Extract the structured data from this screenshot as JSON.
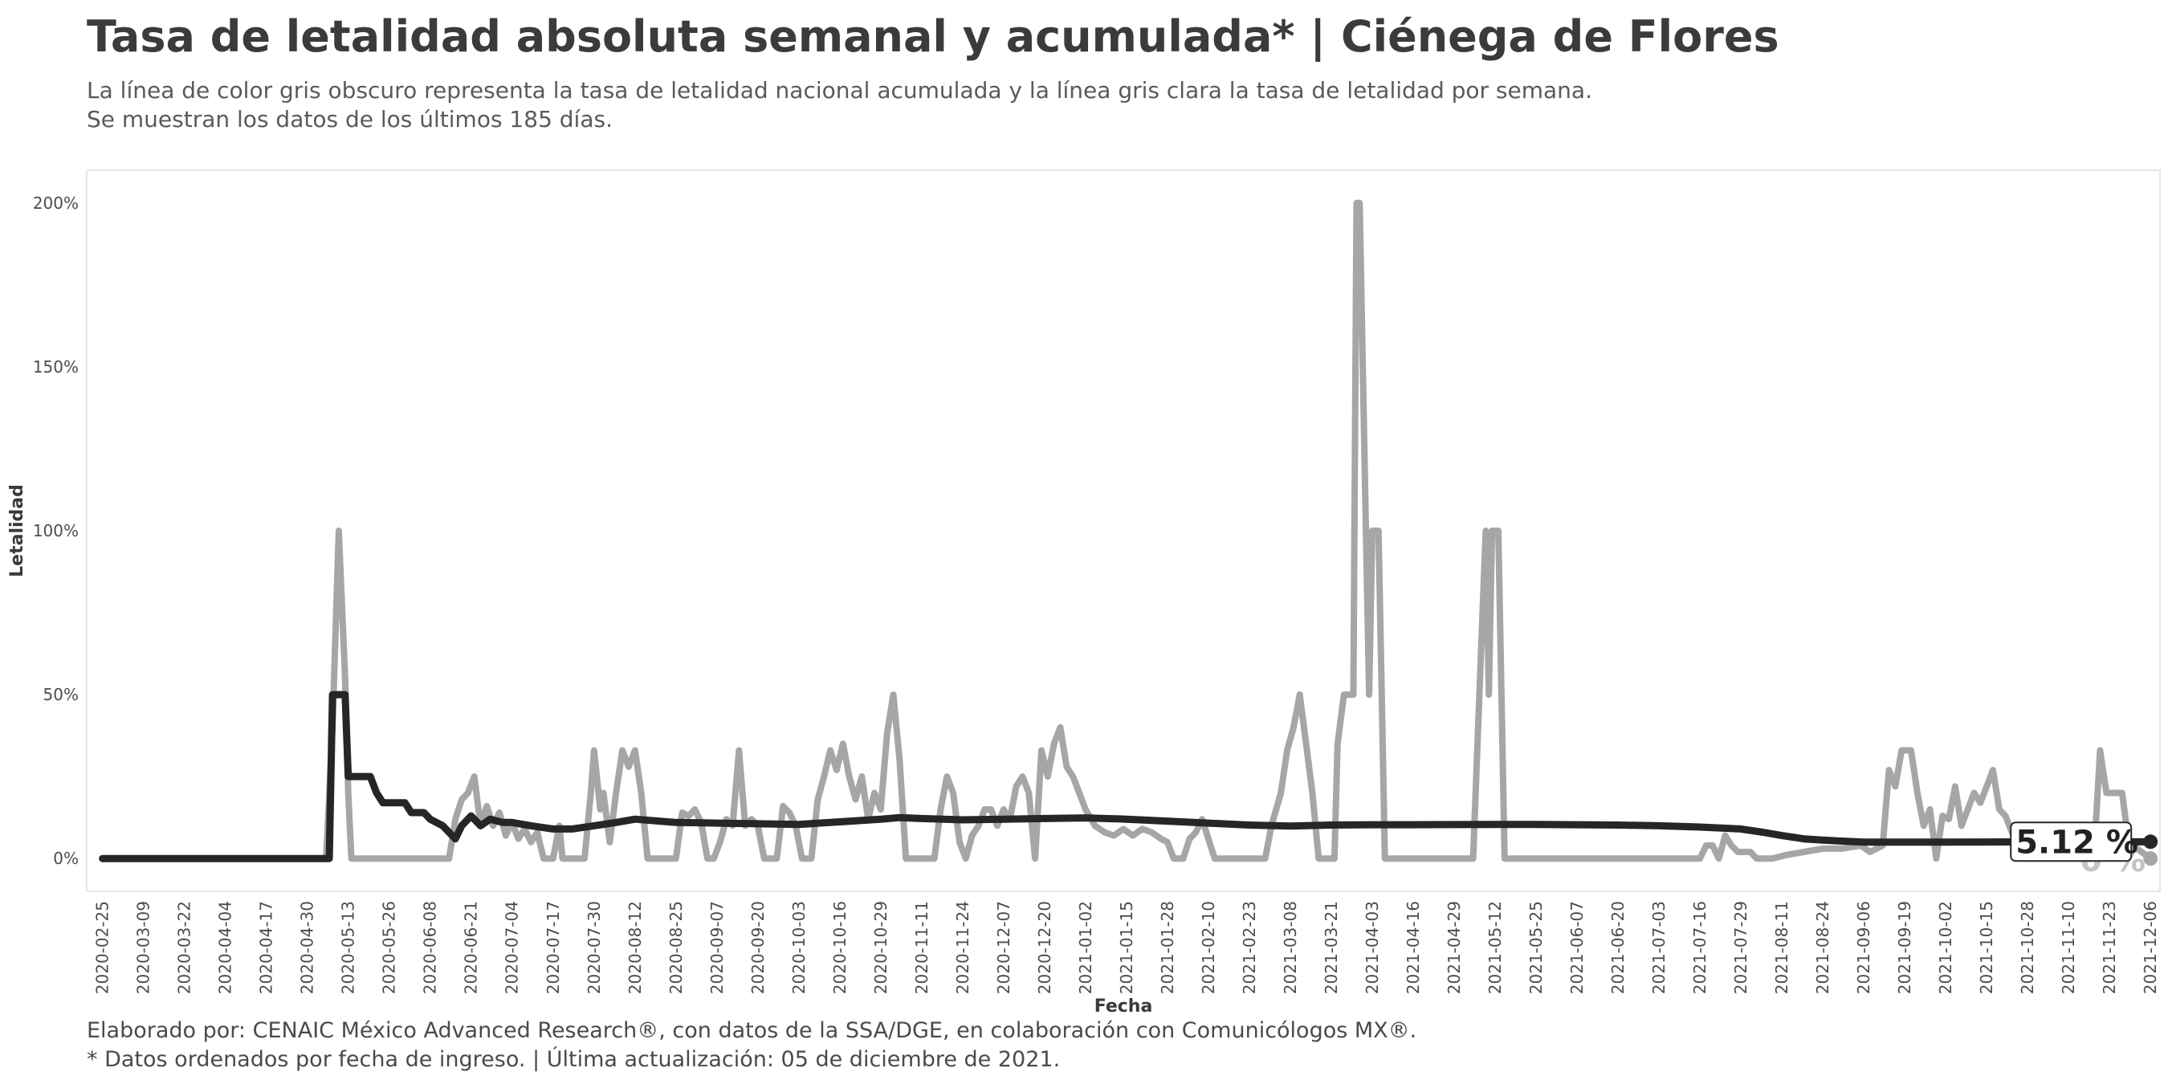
{
  "title": "Tasa de letalidad absoluta semanal y acumulada* | Ciénega de Flores",
  "subtitle_line1": "La línea de color gris obscuro representa la tasa de letalidad nacional acumulada y la línea gris clara la tasa de letalidad por semana.",
  "subtitle_line2": "Se muestran los datos de los últimos 185 días.",
  "caption_line1": "Elaborado por: CENAIC México Advanced Research®, con datos de la SSA/DGE, en colaboración con Comunicólogos MX®.",
  "caption_line2": "* Datos ordenados por fecha de ingreso. | Última actualización: 05 de diciembre de 2021.",
  "colors": {
    "weekly": "#a6a6a6",
    "cumulative": "#262626"
  },
  "chart_data": {
    "type": "line",
    "xlabel": "Fecha",
    "ylabel": "Letalidad",
    "x_range": [
      "2020-02-20",
      "2021-12-09"
    ],
    "ylim": [
      -10,
      210
    ],
    "y_ticks": [
      0,
      50,
      100,
      150,
      200
    ],
    "y_tick_labels": [
      "0%",
      "50%",
      "100%",
      "150%",
      "200%"
    ],
    "x_tick_labels": [
      "2020-02-25",
      "2020-03-09",
      "2020-03-22",
      "2020-04-04",
      "2020-04-17",
      "2020-04-30",
      "2020-05-13",
      "2020-05-26",
      "2020-06-08",
      "2020-06-21",
      "2020-07-04",
      "2020-07-17",
      "2020-07-30",
      "2020-08-12",
      "2020-08-25",
      "2020-09-07",
      "2020-09-20",
      "2020-10-03",
      "2020-10-16",
      "2020-10-29",
      "2020-11-11",
      "2020-11-24",
      "2020-12-07",
      "2020-12-20",
      "2021-01-02",
      "2021-01-15",
      "2021-01-28",
      "2021-02-10",
      "2021-02-23",
      "2021-03-08",
      "2021-03-21",
      "2021-04-03",
      "2021-04-16",
      "2021-04-29",
      "2021-05-12",
      "2021-05-25",
      "2021-06-07",
      "2021-06-20",
      "2021-07-03",
      "2021-07-16",
      "2021-07-29",
      "2021-08-11",
      "2021-08-24",
      "2021-09-06",
      "2021-09-19",
      "2021-10-02",
      "2021-10-15",
      "2021-10-28",
      "2021-11-10",
      "2021-11-23",
      "2021-12-06"
    ],
    "grid": false,
    "end_label_cumulative": "5.12 %",
    "end_label_weekly": "0 %",
    "series": [
      {
        "role": "weekly",
        "points": [
          [
            "2020-02-25",
            0
          ],
          [
            "2020-05-06",
            0
          ],
          [
            "2020-05-08",
            40
          ],
          [
            "2020-05-10",
            100
          ],
          [
            "2020-05-12",
            55
          ],
          [
            "2020-05-13",
            20
          ],
          [
            "2020-05-14",
            0
          ],
          [
            "2020-06-14",
            0
          ],
          [
            "2020-06-16",
            12
          ],
          [
            "2020-06-18",
            18
          ],
          [
            "2020-06-20",
            20
          ],
          [
            "2020-06-22",
            25
          ],
          [
            "2020-06-24",
            10
          ],
          [
            "2020-06-26",
            16
          ],
          [
            "2020-06-28",
            10
          ],
          [
            "2020-06-30",
            14
          ],
          [
            "2020-07-02",
            7
          ],
          [
            "2020-07-04",
            11
          ],
          [
            "2020-07-06",
            6
          ],
          [
            "2020-07-08",
            9
          ],
          [
            "2020-07-10",
            5
          ],
          [
            "2020-07-12",
            8
          ],
          [
            "2020-07-14",
            0
          ],
          [
            "2020-07-17",
            0
          ],
          [
            "2020-07-18",
            5
          ],
          [
            "2020-07-19",
            10
          ],
          [
            "2020-07-20",
            0
          ],
          [
            "2020-07-27",
            0
          ],
          [
            "2020-07-29",
            20
          ],
          [
            "2020-07-30",
            33
          ],
          [
            "2020-08-01",
            15
          ],
          [
            "2020-08-02",
            20
          ],
          [
            "2020-08-04",
            5
          ],
          [
            "2020-08-06",
            20
          ],
          [
            "2020-08-08",
            33
          ],
          [
            "2020-08-10",
            28
          ],
          [
            "2020-08-12",
            33
          ],
          [
            "2020-08-14",
            20
          ],
          [
            "2020-08-16",
            0
          ],
          [
            "2020-08-25",
            0
          ],
          [
            "2020-08-27",
            14
          ],
          [
            "2020-08-29",
            13
          ],
          [
            "2020-08-31",
            15
          ],
          [
            "2020-09-02",
            11
          ],
          [
            "2020-09-04",
            0
          ],
          [
            "2020-09-06",
            0
          ],
          [
            "2020-09-08",
            5
          ],
          [
            "2020-09-10",
            12
          ],
          [
            "2020-09-12",
            10
          ],
          [
            "2020-09-14",
            33
          ],
          [
            "2020-09-16",
            10
          ],
          [
            "2020-09-18",
            12
          ],
          [
            "2020-09-20",
            10
          ],
          [
            "2020-09-22",
            0
          ],
          [
            "2020-09-26",
            0
          ],
          [
            "2020-09-28",
            16
          ],
          [
            "2020-09-30",
            14
          ],
          [
            "2020-10-02",
            10
          ],
          [
            "2020-10-04",
            0
          ],
          [
            "2020-10-07",
            0
          ],
          [
            "2020-10-09",
            18
          ],
          [
            "2020-10-11",
            25
          ],
          [
            "2020-10-13",
            33
          ],
          [
            "2020-10-15",
            27
          ],
          [
            "2020-10-17",
            35
          ],
          [
            "2020-10-19",
            25
          ],
          [
            "2020-10-21",
            18
          ],
          [
            "2020-10-23",
            25
          ],
          [
            "2020-10-25",
            12
          ],
          [
            "2020-10-27",
            20
          ],
          [
            "2020-10-29",
            15
          ],
          [
            "2020-10-31",
            38
          ],
          [
            "2020-11-02",
            50
          ],
          [
            "2020-11-04",
            30
          ],
          [
            "2020-11-06",
            0
          ],
          [
            "2020-11-15",
            0
          ],
          [
            "2020-11-17",
            15
          ],
          [
            "2020-11-19",
            25
          ],
          [
            "2020-11-21",
            20
          ],
          [
            "2020-11-23",
            5
          ],
          [
            "2020-11-25",
            0
          ],
          [
            "2020-11-27",
            7
          ],
          [
            "2020-11-29",
            10
          ],
          [
            "2020-12-01",
            15
          ],
          [
            "2020-12-03",
            15
          ],
          [
            "2020-12-05",
            10
          ],
          [
            "2020-12-07",
            15
          ],
          [
            "2020-12-09",
            12
          ],
          [
            "2020-12-11",
            22
          ],
          [
            "2020-12-13",
            25
          ],
          [
            "2020-12-15",
            20
          ],
          [
            "2020-12-17",
            0
          ],
          [
            "2020-12-19",
            33
          ],
          [
            "2020-12-21",
            25
          ],
          [
            "2020-12-23",
            35
          ],
          [
            "2020-12-25",
            40
          ],
          [
            "2020-12-27",
            28
          ],
          [
            "2020-12-29",
            25
          ],
          [
            "2020-12-31",
            20
          ],
          [
            "2021-01-02",
            15
          ],
          [
            "2021-01-05",
            10
          ],
          [
            "2021-01-08",
            8
          ],
          [
            "2021-01-11",
            7
          ],
          [
            "2021-01-14",
            9
          ],
          [
            "2021-01-17",
            7
          ],
          [
            "2021-01-20",
            9
          ],
          [
            "2021-01-23",
            8
          ],
          [
            "2021-01-26",
            6
          ],
          [
            "2021-01-28",
            5
          ],
          [
            "2021-01-30",
            0
          ],
          [
            "2021-02-02",
            0
          ],
          [
            "2021-02-04",
            6
          ],
          [
            "2021-02-06",
            8
          ],
          [
            "2021-02-08",
            12
          ],
          [
            "2021-02-10",
            6
          ],
          [
            "2021-02-12",
            0
          ],
          [
            "2021-02-28",
            0
          ],
          [
            "2021-03-02",
            10
          ],
          [
            "2021-03-05",
            20
          ],
          [
            "2021-03-07",
            33
          ],
          [
            "2021-03-09",
            40
          ],
          [
            "2021-03-11",
            50
          ],
          [
            "2021-03-13",
            35
          ],
          [
            "2021-03-15",
            20
          ],
          [
            "2021-03-17",
            0
          ],
          [
            "2021-03-22",
            0
          ],
          [
            "2021-03-23",
            35
          ],
          [
            "2021-03-25",
            50
          ],
          [
            "2021-03-28",
            50
          ],
          [
            "2021-03-29",
            200
          ],
          [
            "2021-03-30",
            200
          ],
          [
            "2021-03-31",
            150
          ],
          [
            "2021-04-01",
            100
          ],
          [
            "2021-04-02",
            50
          ],
          [
            "2021-04-03",
            100
          ],
          [
            "2021-04-05",
            100
          ],
          [
            "2021-04-06",
            50
          ],
          [
            "2021-04-07",
            0
          ],
          [
            "2021-05-05",
            0
          ],
          [
            "2021-05-07",
            50
          ],
          [
            "2021-05-09",
            100
          ],
          [
            "2021-05-10",
            50
          ],
          [
            "2021-05-11",
            100
          ],
          [
            "2021-05-13",
            100
          ],
          [
            "2021-05-15",
            0
          ],
          [
            "2021-07-16",
            0
          ],
          [
            "2021-07-18",
            4
          ],
          [
            "2021-07-20",
            4
          ],
          [
            "2021-07-22",
            0
          ],
          [
            "2021-07-24",
            7
          ],
          [
            "2021-07-26",
            4
          ],
          [
            "2021-07-28",
            2
          ],
          [
            "2021-08-01",
            2
          ],
          [
            "2021-08-03",
            0
          ],
          [
            "2021-08-08",
            0
          ],
          [
            "2021-08-12",
            1
          ],
          [
            "2021-08-18",
            2
          ],
          [
            "2021-08-24",
            3
          ],
          [
            "2021-08-30",
            3
          ],
          [
            "2021-09-05",
            4
          ],
          [
            "2021-09-08",
            2
          ],
          [
            "2021-09-12",
            4
          ],
          [
            "2021-09-14",
            27
          ],
          [
            "2021-09-16",
            22
          ],
          [
            "2021-09-18",
            33
          ],
          [
            "2021-09-21",
            33
          ],
          [
            "2021-09-23",
            20
          ],
          [
            "2021-09-25",
            10
          ],
          [
            "2021-09-27",
            15
          ],
          [
            "2021-09-29",
            0
          ],
          [
            "2021-10-01",
            13
          ],
          [
            "2021-10-03",
            12
          ],
          [
            "2021-10-05",
            22
          ],
          [
            "2021-10-07",
            10
          ],
          [
            "2021-10-09",
            15
          ],
          [
            "2021-10-11",
            20
          ],
          [
            "2021-10-13",
            17
          ],
          [
            "2021-10-15",
            22
          ],
          [
            "2021-10-17",
            27
          ],
          [
            "2021-10-19",
            15
          ],
          [
            "2021-10-21",
            13
          ],
          [
            "2021-10-23",
            8
          ],
          [
            "2021-10-25",
            5
          ],
          [
            "2021-10-27",
            0
          ],
          [
            "2021-11-18",
            0
          ],
          [
            "2021-11-20",
            33
          ],
          [
            "2021-11-22",
            20
          ],
          [
            "2021-11-27",
            20
          ],
          [
            "2021-11-29",
            5
          ],
          [
            "2021-12-06",
            0
          ]
        ]
      },
      {
        "role": "cumulative",
        "points": [
          [
            "2020-02-25",
            0
          ],
          [
            "2020-05-07",
            0
          ],
          [
            "2020-05-08",
            50
          ],
          [
            "2020-05-12",
            50
          ],
          [
            "2020-05-13",
            25
          ],
          [
            "2020-05-20",
            25
          ],
          [
            "2020-05-22",
            20
          ],
          [
            "2020-05-24",
            17
          ],
          [
            "2020-05-31",
            17
          ],
          [
            "2020-06-02",
            14
          ],
          [
            "2020-06-06",
            14
          ],
          [
            "2020-06-08",
            12
          ],
          [
            "2020-06-12",
            10
          ],
          [
            "2020-06-16",
            6
          ],
          [
            "2020-06-18",
            10
          ],
          [
            "2020-06-21",
            13
          ],
          [
            "2020-06-24",
            10
          ],
          [
            "2020-06-27",
            12
          ],
          [
            "2020-07-01",
            11
          ],
          [
            "2020-07-04",
            11
          ],
          [
            "2020-07-10",
            10
          ],
          [
            "2020-07-17",
            9
          ],
          [
            "2020-07-23",
            9
          ],
          [
            "2020-07-30",
            10
          ],
          [
            "2020-08-06",
            11
          ],
          [
            "2020-08-12",
            12
          ],
          [
            "2020-08-25",
            11
          ],
          [
            "2020-09-07",
            10.8
          ],
          [
            "2020-09-20",
            10.6
          ],
          [
            "2020-10-03",
            10.4
          ],
          [
            "2020-10-16",
            11.2
          ],
          [
            "2020-10-29",
            12
          ],
          [
            "2020-11-04",
            12.5
          ],
          [
            "2020-11-11",
            12.2
          ],
          [
            "2020-11-24",
            11.8
          ],
          [
            "2020-12-07",
            12
          ],
          [
            "2020-12-20",
            12.2
          ],
          [
            "2021-01-02",
            12.4
          ],
          [
            "2021-01-15",
            12
          ],
          [
            "2021-01-28",
            11.4
          ],
          [
            "2021-02-10",
            10.8
          ],
          [
            "2021-02-23",
            10.2
          ],
          [
            "2021-03-08",
            9.9
          ],
          [
            "2021-03-21",
            10.2
          ],
          [
            "2021-04-03",
            10.3
          ],
          [
            "2021-04-16",
            10.3
          ],
          [
            "2021-05-12",
            10.4
          ],
          [
            "2021-05-25",
            10.4
          ],
          [
            "2021-06-07",
            10.3
          ],
          [
            "2021-06-20",
            10.2
          ],
          [
            "2021-07-03",
            10
          ],
          [
            "2021-07-16",
            9.6
          ],
          [
            "2021-07-29",
            9
          ],
          [
            "2021-08-05",
            8
          ],
          [
            "2021-08-11",
            7
          ],
          [
            "2021-08-18",
            6
          ],
          [
            "2021-08-24",
            5.6
          ],
          [
            "2021-09-06",
            5
          ],
          [
            "2021-09-19",
            5
          ],
          [
            "2021-10-02",
            5
          ],
          [
            "2021-10-15",
            5.05
          ],
          [
            "2021-10-28",
            5.1
          ],
          [
            "2021-11-10",
            5.1
          ],
          [
            "2021-11-23",
            5.1
          ],
          [
            "2021-12-06",
            5.12
          ]
        ]
      }
    ]
  }
}
